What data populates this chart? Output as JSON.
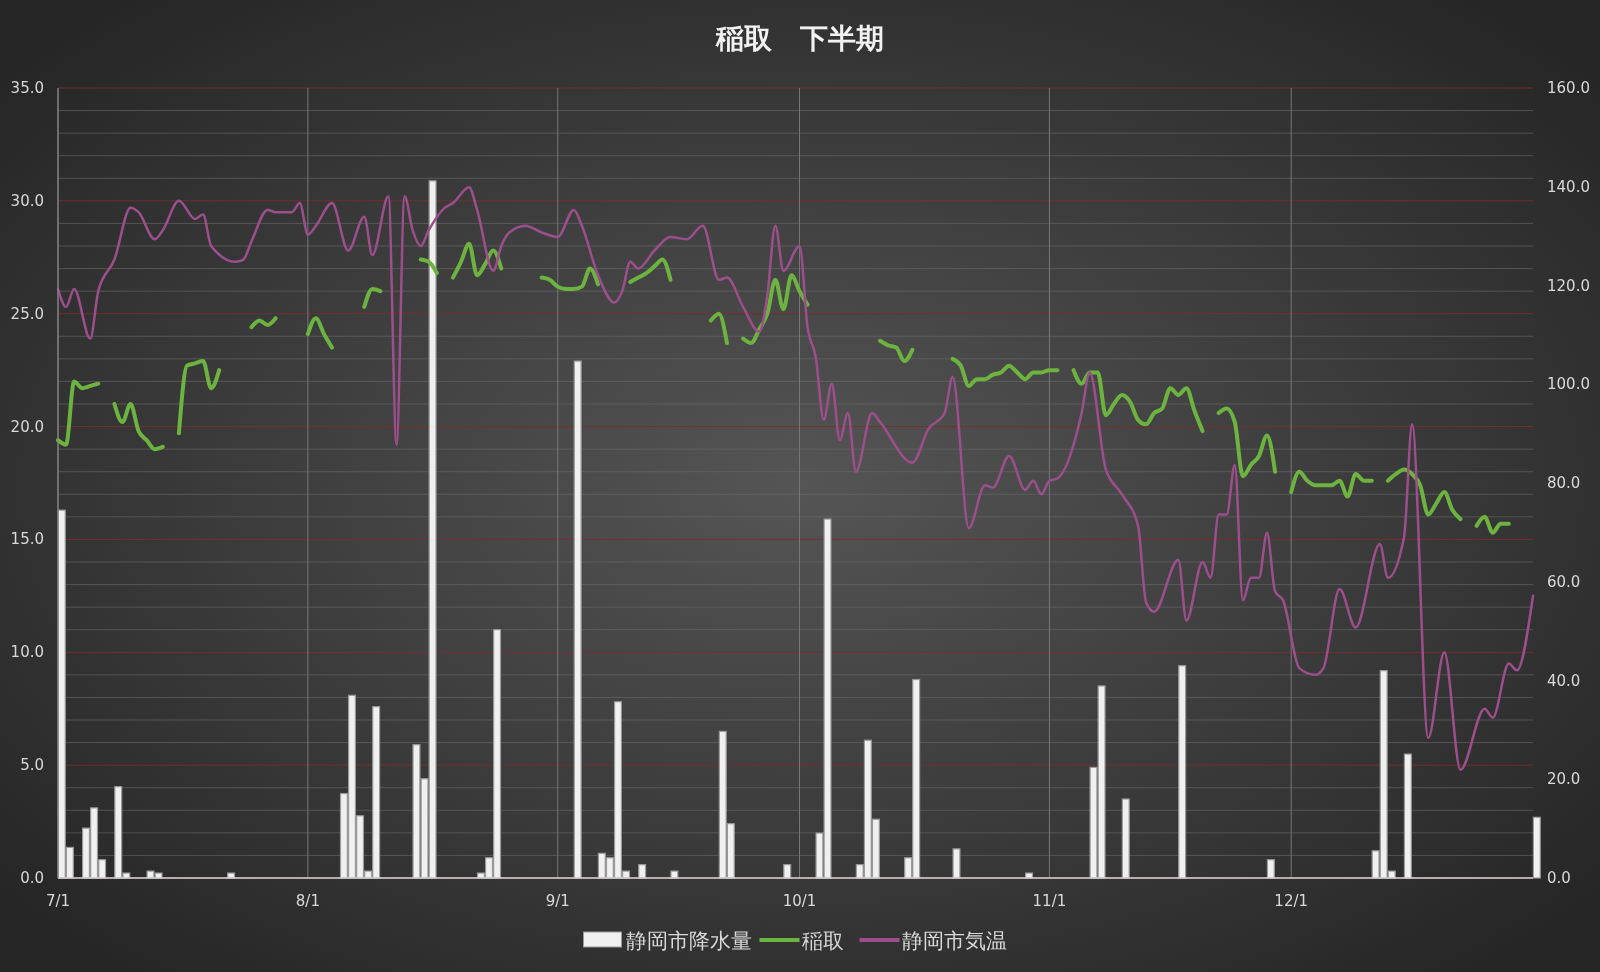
{
  "chart_data": {
    "type": "line",
    "title": "稲取　下半期",
    "xlim": [
      "--07-01",
      "--12-31"
    ],
    "xticks": [
      {
        "value": "--07-01",
        "label": "7/1"
      },
      {
        "value": "--08-01",
        "label": "8/1"
      },
      {
        "value": "--09-01",
        "label": "9/1"
      },
      {
        "value": "--10-01",
        "label": "10/1"
      },
      {
        "value": "--11-01",
        "label": "11/1"
      },
      {
        "value": "--12-01",
        "label": "12/1"
      }
    ],
    "ylim": [
      0,
      35
    ],
    "yticks": [
      {
        "value": 0,
        "label": "0.0"
      },
      {
        "value": 1,
        "label": null
      },
      {
        "value": 2,
        "label": null
      },
      {
        "value": 3,
        "label": null
      },
      {
        "value": 4,
        "label": null
      },
      {
        "value": 5,
        "label": "5.0"
      },
      {
        "value": 6,
        "label": null
      },
      {
        "value": 7,
        "label": null
      },
      {
        "value": 8,
        "label": null
      },
      {
        "value": 9,
        "label": null
      },
      {
        "value": 10,
        "label": "10.0"
      },
      {
        "value": 11,
        "label": null
      },
      {
        "value": 12,
        "label": null
      },
      {
        "value": 13,
        "label": null
      },
      {
        "value": 14,
        "label": null
      },
      {
        "value": 15,
        "label": "15.0"
      },
      {
        "value": 16,
        "label": null
      },
      {
        "value": 17,
        "label": null
      },
      {
        "value": 18,
        "label": null
      },
      {
        "value": 19,
        "label": null
      },
      {
        "value": 20,
        "label": "20.0"
      },
      {
        "value": 21,
        "label": null
      },
      {
        "value": 22,
        "label": null
      },
      {
        "value": 23,
        "label": null
      },
      {
        "value": 24,
        "label": null
      },
      {
        "value": 25,
        "label": "25.0"
      },
      {
        "value": 26,
        "label": null
      },
      {
        "value": 27,
        "label": null
      },
      {
        "value": 28,
        "label": null
      },
      {
        "value": 29,
        "label": null
      },
      {
        "value": 30,
        "label": "30.0"
      },
      {
        "value": 31,
        "label": null
      },
      {
        "value": 32,
        "label": null
      },
      {
        "value": 33,
        "label": null
      },
      {
        "value": 34,
        "label": null
      },
      {
        "value": 35,
        "label": "35.0"
      }
    ],
    "y2lim": [
      0,
      160
    ],
    "y2ticks": [
      {
        "value": 0,
        "label": "0.0"
      },
      {
        "value": 20,
        "label": "20.0"
      },
      {
        "value": 40,
        "label": "40.0"
      },
      {
        "value": 60,
        "label": "60.0"
      },
      {
        "value": 80,
        "label": "80.0"
      },
      {
        "value": 100,
        "label": "100.0"
      },
      {
        "value": 120,
        "label": "120.0"
      },
      {
        "value": 140,
        "label": "140.0"
      },
      {
        "value": 160,
        "label": "160.0"
      }
    ],
    "grid": true,
    "legend": "bottom",
    "series": [
      {
        "name": "静岡市降水量",
        "type": "bar",
        "axis": "y2",
        "color": "#f0f0f0",
        "x": [
          "--07-01",
          "--07-02",
          "--07-04",
          "--07-05",
          "--07-06",
          "--07-08",
          "--07-09",
          "--07-12",
          "--07-13",
          "--07-22",
          "--08-05",
          "--08-06",
          "--08-07",
          "--08-08",
          "--08-09",
          "--08-14",
          "--08-15",
          "--08-16",
          "--08-22",
          "--08-23",
          "--08-24",
          "--09-03",
          "--09-06",
          "--09-07",
          "--09-08",
          "--09-09",
          "--09-11",
          "--09-15",
          "--09-21",
          "--09-22",
          "--09-29",
          "--10-03",
          "--10-04",
          "--10-08",
          "--10-09",
          "--10-10",
          "--10-14",
          "--10-15",
          "--10-20",
          "--10-29",
          "--11-06",
          "--11-07",
          "--11-10",
          "--11-17",
          "--11-28",
          "--12-11",
          "--12-12",
          "--12-13",
          "--12-15",
          "--12-31"
        ],
        "values": [
          74.5,
          6.2,
          10.1,
          14.2,
          3.7,
          18.5,
          1,
          1.4,
          1,
          1,
          17.1,
          37,
          12.6,
          1.4,
          34.7,
          27,
          20.1,
          141.2,
          1,
          4.1,
          50.3,
          104.7,
          5,
          4.1,
          35.7,
          1.4,
          2.7,
          1.4,
          29.7,
          11,
          2.7,
          9.1,
          72.7,
          2.7,
          27.9,
          11.9,
          4.1,
          40.2,
          5.9,
          1,
          22.4,
          38.9,
          16,
          43,
          3.7,
          5.5,
          42,
          1.4,
          25.1,
          12.3
        ]
      },
      {
        "name": "稲取",
        "color": "#6db33f",
        "x": [
          "--07-01",
          "--07-02",
          "--07-03",
          "--07-04",
          "--07-05",
          "--07-06",
          "--07-07",
          "--07-08",
          "--07-09",
          "--07-10",
          "--07-11",
          "--07-12",
          "--07-13",
          "--07-14",
          "--07-15",
          "--07-16",
          "--07-17",
          "--07-18",
          "--07-19",
          "--07-20",
          "--07-21",
          "--07-22",
          "--07-25",
          "--07-26",
          "--07-27",
          "--07-28",
          "--07-29",
          "--08-01",
          "--08-02",
          "--08-03",
          "--08-04",
          "--08-05",
          "--08-08",
          "--08-09",
          "--08-10",
          "--08-11",
          "--08-15",
          "--08-16",
          "--08-17",
          "--08-18",
          "--08-19",
          "--08-20",
          "--08-21",
          "--08-22",
          "--08-23",
          "--08-24",
          "--08-25",
          "--08-26",
          "--08-30",
          "--08-31",
          "--09-01",
          "--09-02",
          "--09-03",
          "--09-04",
          "--09-05",
          "--09-06",
          "--09-07",
          "--09-10",
          "--09-11",
          "--09-12",
          "--09-13",
          "--09-14",
          "--09-15",
          "--09-16",
          "--09-20",
          "--09-21",
          "--09-22",
          "--09-23",
          "--09-24",
          "--09-25",
          "--09-26",
          "--09-27",
          "--09-28",
          "--09-29",
          "--09-30",
          "--10-01",
          "--10-02",
          "--10-03",
          "--10-11",
          "--10-12",
          "--10-13",
          "--10-14",
          "--10-15",
          "--10-16",
          "--10-20",
          "--10-21",
          "--10-22",
          "--10-23",
          "--10-24",
          "--10-25",
          "--10-26",
          "--10-27",
          "--10-28",
          "--10-29",
          "--10-30",
          "--10-31",
          "--11-01",
          "--11-02",
          "--11-03",
          "--11-04",
          "--11-05",
          "--11-06",
          "--11-07",
          "--11-08",
          "--11-09",
          "--11-10",
          "--11-11",
          "--11-12",
          "--11-13",
          "--11-14",
          "--11-15",
          "--11-16",
          "--11-17",
          "--11-18",
          "--11-19",
          "--11-20",
          "--11-21",
          "--11-22",
          "--11-23",
          "--11-24",
          "--11-25",
          "--11-26",
          "--11-27",
          "--11-28",
          "--11-29",
          "--11-30",
          "--12-01",
          "--12-02",
          "--12-03",
          "--12-04",
          "--12-05",
          "--12-06",
          "--12-07",
          "--12-08",
          "--12-09",
          "--12-10",
          "--12-11",
          "--12-12",
          "--12-13",
          "--12-14",
          "--12-15",
          "--12-16",
          "--12-17",
          "--12-18",
          "--12-19",
          "--12-20",
          "--12-21",
          "--12-22",
          "--12-23",
          "--12-24",
          "--12-25",
          "--12-26",
          "--12-27",
          "--12-28"
        ],
        "values": [
          19.4,
          19.2,
          22.0,
          21.7,
          21.8,
          21.9,
          null,
          21.0,
          20.2,
          21.0,
          19.8,
          19.4,
          19.0,
          19.1,
          null,
          19.7,
          22.7,
          22.8,
          22.9,
          21.7,
          22.5,
          null,
          24.4,
          24.7,
          24.5,
          24.8,
          null,
          24.1,
          24.8,
          24.1,
          23.5,
          null,
          25.3,
          26.1,
          26.0,
          null,
          27.4,
          27.3,
          26.8,
          null,
          26.6,
          27.3,
          28.1,
          26.7,
          27.2,
          27.8,
          27.0,
          null,
          26.6,
          26.5,
          26.2,
          26.1,
          26.1,
          26.2,
          27.0,
          26.3,
          null,
          26.4,
          26.6,
          26.8,
          27.1,
          27.4,
          26.5,
          null,
          24.7,
          25.0,
          23.7,
          null,
          23.9,
          23.7,
          24.3,
          25.0,
          26.5,
          25.2,
          26.7,
          26.0,
          25.4,
          null,
          23.8,
          23.6,
          23.5,
          22.9,
          23.4,
          null,
          23.0,
          22.7,
          21.8,
          22.1,
          22.1,
          22.3,
          22.4,
          22.7,
          22.4,
          22.1,
          22.4,
          22.4,
          22.5,
          22.5,
          null,
          22.5,
          21.9,
          22.4,
          22.4,
          20.5,
          21.0,
          21.4,
          21.1,
          20.3,
          20.1,
          20.6,
          20.8,
          21.7,
          21.4,
          21.7,
          20.7,
          19.8,
          null,
          20.6,
          20.8,
          20.2,
          17.8,
          18.3,
          18.7,
          19.6,
          18.0,
          null,
          17.1,
          18.0,
          17.6,
          17.4,
          17.4,
          17.4,
          17.6,
          16.9,
          17.9,
          17.6,
          17.6,
          null,
          17.6,
          17.9,
          18.1,
          17.9,
          17.4,
          16.1,
          16.6,
          17.1,
          16.3,
          15.9,
          null,
          15.6,
          16.0,
          15.3,
          15.7,
          15.7
        ]
      },
      {
        "name": "静岡市気温",
        "color": "#9c4f8c",
        "x": [
          "--07-01",
          "--07-02",
          "--07-03",
          "--07-05",
          "--07-06",
          "--07-08",
          "--07-10",
          "--07-11",
          "--07-13",
          "--07-14",
          "--07-16",
          "--07-18",
          "--07-19",
          "--07-20",
          "--07-23",
          "--07-24",
          "--07-25",
          "--07-27",
          "--07-28",
          "--07-30",
          "--07-31",
          "--08-01",
          "--08-02",
          "--08-04",
          "--08-06",
          "--08-08",
          "--08-09",
          "--08-11",
          "--08-12",
          "--08-13",
          "--08-14",
          "--08-15",
          "--08-16",
          "--08-18",
          "--08-19",
          "--08-21",
          "--08-22",
          "--08-24",
          "--08-25",
          "--08-26",
          "--08-28",
          "--08-30",
          "--09-01",
          "--09-03",
          "--09-04",
          "--09-06",
          "--09-08",
          "--09-09",
          "--09-10",
          "--09-11",
          "--09-13",
          "--09-15",
          "--09-17",
          "--09-19",
          "--09-21",
          "--09-22",
          "--09-24",
          "--09-26",
          "--09-27",
          "--09-28",
          "--09-29",
          "--10-01",
          "--10-02",
          "--10-03",
          "--10-04",
          "--10-05",
          "--10-06",
          "--10-07",
          "--10-08",
          "--10-10",
          "--10-11",
          "--10-15",
          "--10-17",
          "--10-19",
          "--10-20",
          "--10-22",
          "--10-24",
          "--10-25",
          "--10-27",
          "--10-29",
          "--10-30",
          "--10-31",
          "--11-01",
          "--11-02",
          "--11-05",
          "--11-06",
          "--11-08",
          "--11-10",
          "--11-12",
          "--11-13",
          "--11-14",
          "--11-17",
          "--11-18",
          "--11-20",
          "--11-21",
          "--11-22",
          "--11-23",
          "--11-24",
          "--11-25",
          "--11-26",
          "--11-27",
          "--11-28",
          "--11-29",
          "--11-30",
          "--12-02",
          "--12-04",
          "--12-05",
          "--12-07",
          "--12-09",
          "--12-12",
          "--12-13",
          "--12-15",
          "--12-16",
          "--12-18",
          "--12-20",
          "--12-22",
          "--12-25",
          "--12-26",
          "--12-28",
          "--12-29",
          "--12-31"
        ],
        "values": [
          26.1,
          25.3,
          26.1,
          23.9,
          26.0,
          27.4,
          29.7,
          29.5,
          28.3,
          28.7,
          30.0,
          29.2,
          29.4,
          28.0,
          27.3,
          27.4,
          28.2,
          29.6,
          29.5,
          29.5,
          29.9,
          28.5,
          28.9,
          29.9,
          27.8,
          29.3,
          27.6,
          30.2,
          19.2,
          30.2,
          28.7,
          28.0,
          28.7,
          29.7,
          29.9,
          30.6,
          29.6,
          26.9,
          28.0,
          28.6,
          28.9,
          28.6,
          28.4,
          29.6,
          28.9,
          26.7,
          25.5,
          26.0,
          27.3,
          27.0,
          27.8,
          28.4,
          28.3,
          28.9,
          26.5,
          26.6,
          25.3,
          24.2,
          25.8,
          28.9,
          26.9,
          28.0,
          24.4,
          23.1,
          20.3,
          21.9,
          19.4,
          20.6,
          18.0,
          20.6,
          20.2,
          18.4,
          19.9,
          20.6,
          22.2,
          15.5,
          17.4,
          17.3,
          18.7,
          17.2,
          17.6,
          17.0,
          17.6,
          17.7,
          20.6,
          22.4,
          18.1,
          17.0,
          15.6,
          12.2,
          11.8,
          14.1,
          11.4,
          14.0,
          13.3,
          16.1,
          16.1,
          18.3,
          12.3,
          13.3,
          13.3,
          15.3,
          12.7,
          12.3,
          9.3,
          9.0,
          9.3,
          12.8,
          11.1,
          14.8,
          13.3,
          15.1,
          20.1,
          6.2,
          10.0,
          4.8,
          7.5,
          7.1,
          9.5,
          9.2,
          12.5
        ]
      }
    ]
  }
}
